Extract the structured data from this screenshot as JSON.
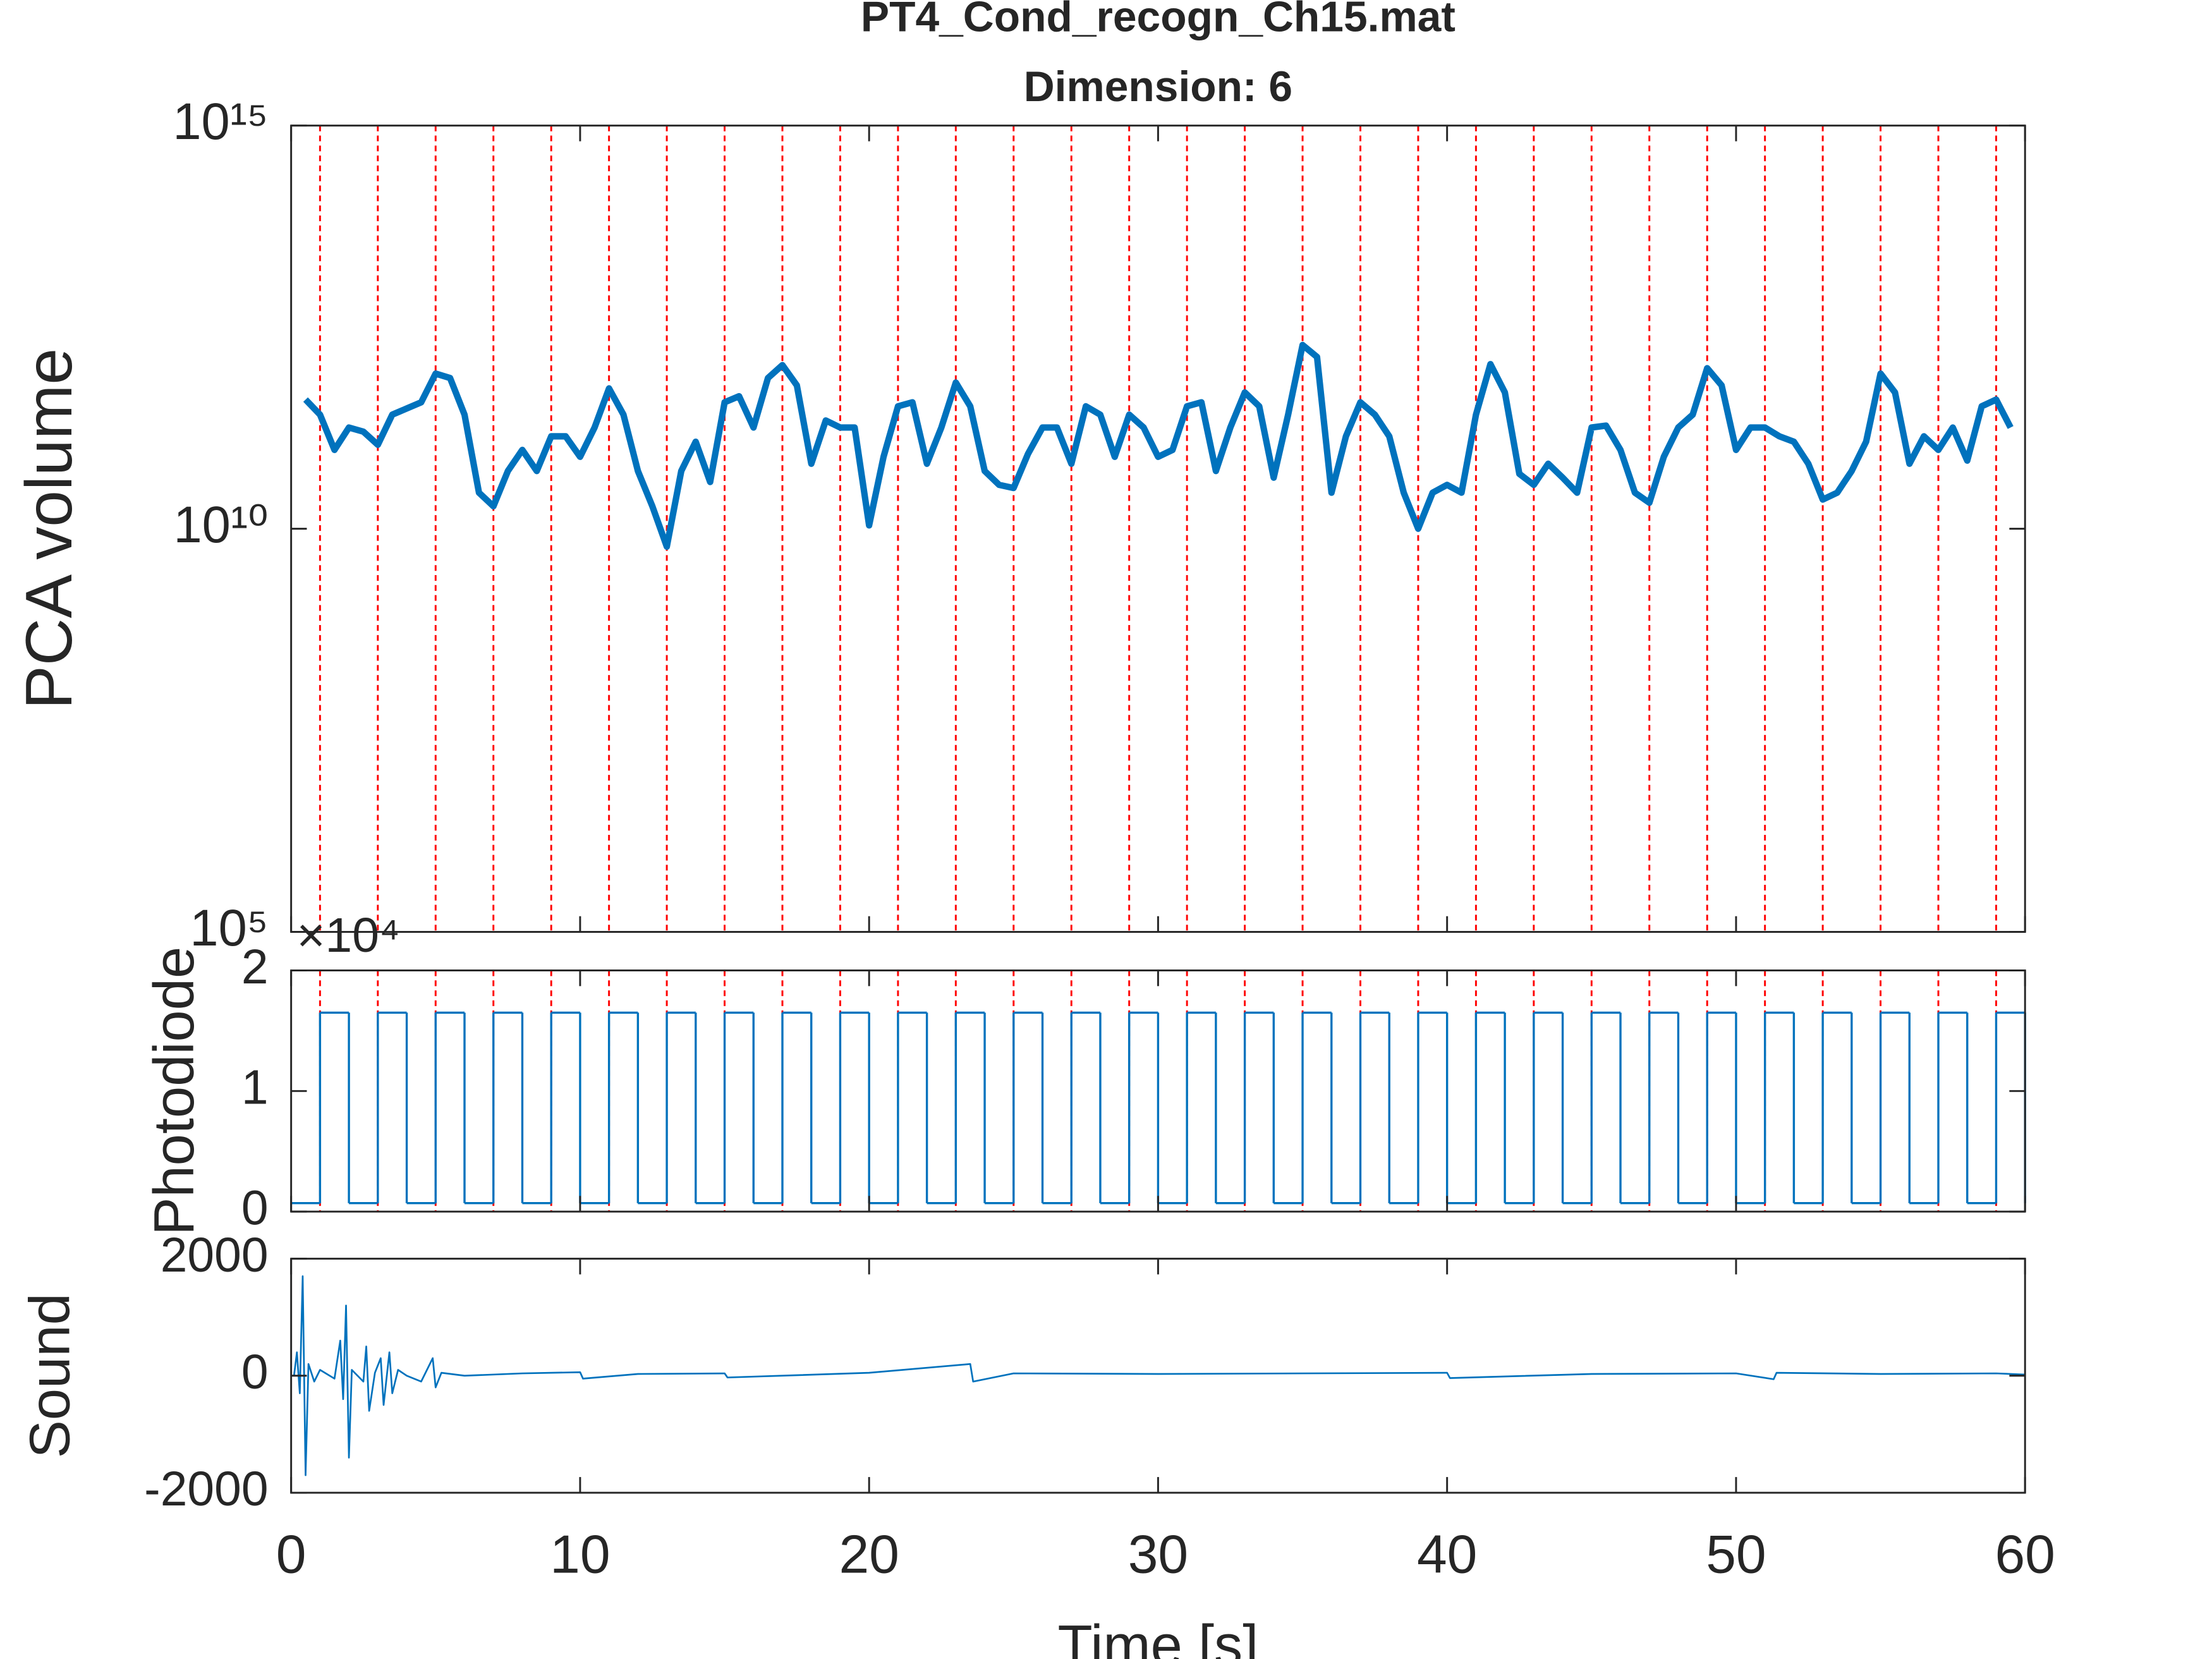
{
  "chart_data": [
    {
      "type": "line",
      "title": "PT4_Cond_recogn_Ch15.mat",
      "subtitle": "Dimension: 6",
      "ylabel": "PCA volume",
      "yscale": "log",
      "xlim": [
        0,
        60
      ],
      "xticks": [
        0,
        10,
        20,
        30,
        40,
        50,
        60
      ],
      "xtick_labels": false,
      "ylim": [
        100000,
        1000000000000000
      ],
      "yticks": [
        {
          "value": 100000,
          "label": "10⁵"
        },
        {
          "value": 10000000000,
          "label": "10¹⁰"
        },
        {
          "value": 1000000000000000,
          "label": "10¹⁵"
        }
      ],
      "vlines": [
        1,
        3,
        5,
        7,
        9,
        11,
        13,
        15,
        17,
        19,
        21,
        23,
        25,
        27,
        29,
        31,
        33,
        35,
        37,
        39,
        41,
        43,
        45,
        47,
        49,
        51,
        53,
        55,
        57,
        59
      ],
      "vline_color": "#ff0000",
      "x": [
        0.5,
        1,
        1.5,
        2,
        2.5,
        3,
        3.5,
        4,
        4.5,
        5,
        5.5,
        6,
        6.5,
        7,
        7.5,
        8,
        8.5,
        9,
        9.5,
        10,
        10.5,
        11,
        11.5,
        12,
        12.5,
        13,
        13.5,
        14,
        14.5,
        15,
        15.5,
        16,
        16.5,
        17,
        17.5,
        18,
        18.5,
        19,
        19.5,
        20,
        20.5,
        21,
        21.5,
        22,
        22.5,
        23,
        23.5,
        24,
        24.5,
        25,
        25.5,
        26,
        26.5,
        27,
        27.5,
        28,
        28.5,
        29,
        29.5,
        30,
        30.5,
        31,
        31.5,
        32,
        32.5,
        33,
        33.5,
        34,
        34.5,
        35,
        35.5,
        36,
        36.5,
        37,
        37.5,
        38,
        38.5,
        39,
        39.5,
        40,
        40.5,
        41,
        41.5,
        42,
        42.5,
        43,
        43.5,
        44,
        44.5,
        45,
        45.5,
        46,
        46.5,
        47,
        47.5,
        48,
        48.5,
        49,
        49.5,
        50,
        50.5,
        51,
        51.5,
        52,
        52.5,
        53,
        53.5,
        54,
        54.5,
        55,
        55.5,
        56,
        56.5,
        57,
        57.5,
        58,
        58.5,
        59,
        59.5
      ],
      "series": [
        {
          "color": "#0072bd",
          "values": [
            400000000000.0,
            260000000000.0,
            95000000000.0,
            180000000000.0,
            160000000000.0,
            110000000000.0,
            260000000000.0,
            310000000000.0,
            370000000000.0,
            840000000000.0,
            740000000000.0,
            260000000000.0,
            28000000000.0,
            19000000000.0,
            52000000000.0,
            95000000000.0,
            52000000000.0,
            140000000000.0,
            140000000000.0,
            78000000000.0,
            180000000000.0,
            550000000000.0,
            260000000000.0,
            52000000000.0,
            19000000000.0,
            6000000000.0,
            52000000000.0,
            120000000000.0,
            38000000000.0,
            370000000000.0,
            440000000000.0,
            180000000000.0,
            740000000000.0,
            1070000000000.0,
            600000000000.0,
            64000000000.0,
            220000000000.0,
            180000000000.0,
            180000000000.0,
            11000000000.0,
            78000000000.0,
            330000000000.0,
            370000000000.0,
            64000000000.0,
            180000000000.0,
            650000000000.0,
            330000000000.0,
            52000000000.0,
            35000000000.0,
            32000000000.0,
            85000000000.0,
            180000000000.0,
            180000000000.0,
            64000000000.0,
            330000000000.0,
            260000000000.0,
            78000000000.0,
            260000000000.0,
            180000000000.0,
            78000000000.0,
            95000000000.0,
            330000000000.0,
            370000000000.0,
            52000000000.0,
            180000000000.0,
            490000000000.0,
            330000000000.0,
            43000000000.0,
            260000000000.0,
            1900000000000.0,
            1350000000000.0,
            28000000000.0,
            140000000000.0,
            370000000000.0,
            260000000000.0,
            140000000000.0,
            28000000000.0,
            10000000000.0,
            28000000000.0,
            35000000000.0,
            28000000000.0,
            260000000000.0,
            1100000000000.0,
            490000000000.0,
            48000000000.0,
            35000000000.0,
            64000000000.0,
            43000000000.0,
            28000000000.0,
            180000000000.0,
            190000000000.0,
            95000000000.0,
            28000000000.0,
            21000000000.0,
            78000000000.0,
            180000000000.0,
            260000000000.0,
            980000000000.0,
            600000000000.0,
            95000000000.0,
            180000000000.0,
            180000000000.0,
            140000000000.0,
            120000000000.0,
            64000000000.0,
            23000000000.0,
            28000000000.0,
            52000000000.0,
            120000000000.0,
            840000000000.0,
            490000000000.0,
            64000000000.0,
            140000000000.0,
            95000000000.0,
            180000000000.0,
            70000000000.0,
            330000000000.0,
            400000000000.0,
            180000000000.0
          ]
        }
      ]
    },
    {
      "type": "step",
      "ylabel": "Photodiode",
      "y_multiplier": "×10⁴",
      "xlim": [
        0,
        60
      ],
      "xticks": [
        0,
        10,
        20,
        30,
        40,
        50,
        60
      ],
      "xtick_labels": false,
      "ylim": [
        0,
        20000
      ],
      "yticks": [
        {
          "value": 0,
          "label": "0"
        },
        {
          "value": 10000,
          "label": "1"
        },
        {
          "value": 20000,
          "label": "2"
        }
      ],
      "vlines": [
        1,
        3,
        5,
        7,
        9,
        11,
        13,
        15,
        17,
        19,
        21,
        23,
        25,
        27,
        29,
        31,
        33,
        35,
        37,
        39,
        41,
        43,
        45,
        47,
        49,
        51,
        53,
        55,
        57,
        59
      ],
      "vline_color": "#ff0000",
      "x": [
        0,
        1,
        2,
        3,
        4,
        5,
        6,
        7,
        8,
        9,
        10,
        11,
        12,
        13,
        14,
        15,
        16,
        17,
        18,
        19,
        20,
        21,
        22,
        23,
        24,
        25,
        26,
        27,
        28,
        29,
        30,
        31,
        32,
        33,
        34,
        35,
        36,
        37,
        38,
        39,
        40,
        41,
        42,
        43,
        44,
        45,
        46,
        47,
        48,
        49,
        50,
        51,
        52,
        53,
        54,
        55,
        56,
        57,
        58,
        59,
        60
      ],
      "series": [
        {
          "color": "#0072bd",
          "values": [
            700,
            16500,
            700,
            16500,
            700,
            16500,
            700,
            16500,
            700,
            16500,
            700,
            16500,
            700,
            16500,
            700,
            16500,
            700,
            16500,
            700,
            16500,
            700,
            16500,
            700,
            16500,
            700,
            16500,
            700,
            16500,
            700,
            16500,
            700,
            16500,
            700,
            16500,
            700,
            16500,
            700,
            16500,
            700,
            16500,
            700,
            16500,
            700,
            16500,
            700,
            16500,
            700,
            16500,
            700,
            16500,
            700,
            16500,
            700,
            16500,
            700,
            16500,
            700,
            16500,
            700,
            16500,
            700
          ]
        }
      ]
    },
    {
      "type": "line",
      "ylabel": "Sound",
      "xlabel": "Time [s]",
      "xlim": [
        0,
        60
      ],
      "xticks": [
        0,
        10,
        20,
        30,
        40,
        50,
        60
      ],
      "xtick_labels": true,
      "ylim": [
        -2000,
        2000
      ],
      "yticks": [
        -2000,
        0,
        2000
      ],
      "x": [
        0.1,
        0.2,
        0.3,
        0.4,
        0.5,
        0.6,
        0.8,
        1,
        1.5,
        1.7,
        1.8,
        1.9,
        2,
        2.1,
        2.5,
        2.6,
        2.7,
        2.9,
        3.1,
        3.2,
        3.4,
        3.5,
        3.7,
        4,
        4.5,
        4.9,
        5,
        5.2,
        6,
        8,
        10,
        10.1,
        12,
        15,
        15.1,
        20,
        23.5,
        23.6,
        25,
        30,
        35,
        40,
        40.1,
        45,
        50,
        51.3,
        51.4,
        55,
        59,
        60
      ],
      "series": [
        {
          "color": "#0072bd",
          "values": [
            0,
            400,
            -300,
            1700,
            -1700,
            200,
            -100,
            100,
            -50,
            600,
            -400,
            1200,
            -1400,
            100,
            -100,
            500,
            -600,
            50,
            300,
            -500,
            400,
            -300,
            100,
            0,
            -100,
            300,
            -200,
            50,
            0,
            40,
            60,
            -50,
            30,
            40,
            -30,
            50,
            200,
            -100,
            40,
            30,
            40,
            50,
            -40,
            30,
            40,
            -60,
            50,
            30,
            40,
            20
          ]
        }
      ]
    }
  ]
}
